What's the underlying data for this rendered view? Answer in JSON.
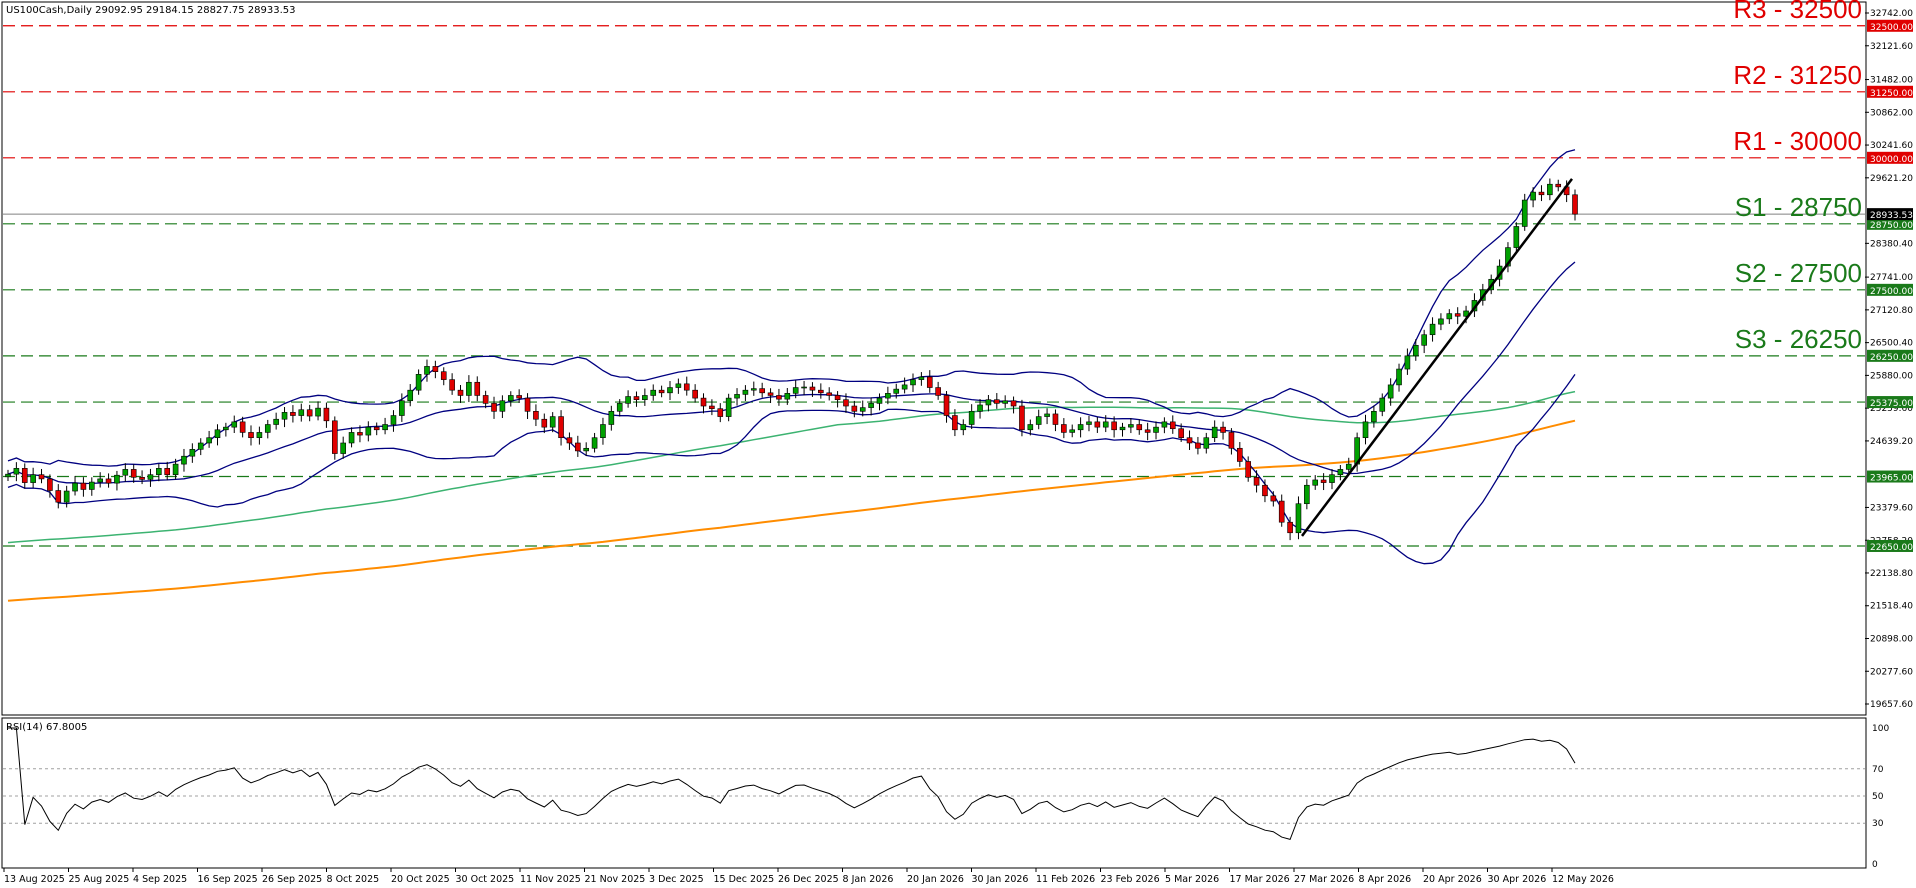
{
  "chart_data": {
    "type": "candlestick",
    "title": "US100Cash,Daily",
    "ohlc_header": "29092.95 29184.15 28827.75 28933.53",
    "current_price": 28933.53,
    "current_price_label": "28933.53",
    "ylim": [
      19657.7,
      32742
    ],
    "y_ticks": [
      "32742.00",
      "32121.60",
      "31482.00",
      "30862.00",
      "30241.60",
      "29621.20",
      "28380.40",
      "27741.00",
      "27120.80",
      "26500.40",
      "25880.00",
      "25259.60",
      "24639.20",
      "23379.60",
      "22758.20",
      "22138.80",
      "21518.40",
      "20898.00",
      "20277.60",
      "19657.60"
    ],
    "x_labels": [
      "13 Aug 2025",
      "25 Aug 2025",
      "4 Sep 2025",
      "16 Sep 2025",
      "26 Sep 2025",
      "8 Oct 2025",
      "20 Oct 2025",
      "30 Oct 2025",
      "11 Nov 2025",
      "21 Nov 2025",
      "3 Dec 2025",
      "15 Dec 2025",
      "26 Dec 2025",
      "8 Jan 2026",
      "20 Jan 2026",
      "30 Jan 2026",
      "11 Feb 2026",
      "23 Feb 2026",
      "5 Mar 2026",
      "17 Mar 2026",
      "27 Mar 2026",
      "8 Apr 2026",
      "20 Apr 2026",
      "30 Apr 2026",
      "12 May 2026"
    ],
    "levels": [
      {
        "value": 32500,
        "label": "R3 - 32500",
        "tag": "32500.00",
        "color": "#e00000"
      },
      {
        "value": 31250,
        "label": "R2 - 31250",
        "tag": "31250.00",
        "color": "#e00000"
      },
      {
        "value": 30000,
        "label": "R1 - 30000",
        "tag": "30000.00",
        "color": "#e00000"
      },
      {
        "value": 28750,
        "label": "S1 - 28750",
        "tag": "28750.00",
        "color": "#1a7a1a"
      },
      {
        "value": 27500,
        "label": "S2 - 27500",
        "tag": "27500.00",
        "color": "#1a7a1a"
      },
      {
        "value": 26250,
        "label": "S3 - 26250",
        "tag": "26250.00",
        "color": "#1a7a1a"
      },
      {
        "value": 25375,
        "label": "",
        "tag": "25375.00",
        "color": "#1a7a1a"
      },
      {
        "value": 23965,
        "label": "",
        "tag": "23965.00",
        "color": "#1a7a1a"
      },
      {
        "value": 22650,
        "label": "",
        "tag": "22650.00",
        "color": "#1a7a1a"
      }
    ],
    "closes": [
      24010,
      24120,
      23850,
      24000,
      23920,
      23700,
      23480,
      23690,
      23840,
      23720,
      23860,
      23920,
      23840,
      23990,
      24100,
      23950,
      23910,
      24000,
      24120,
      24000,
      24200,
      24350,
      24480,
      24600,
      24700,
      24850,
      24900,
      25000,
      24800,
      24700,
      24800,
      24950,
      25050,
      25180,
      25120,
      25230,
      25110,
      25260,
      25020,
      24400,
      24600,
      24800,
      24750,
      24900,
      24850,
      24950,
      25120,
      25400,
      25600,
      25900,
      26050,
      25950,
      25800,
      25600,
      25500,
      25750,
      25500,
      25350,
      25200,
      25400,
      25500,
      25450,
      25200,
      25050,
      24900,
      25100,
      24700,
      24600,
      24450,
      24500,
      24700,
      24950,
      25200,
      25350,
      25480,
      25420,
      25500,
      25600,
      25550,
      25650,
      25720,
      25600,
      25450,
      25300,
      25250,
      25100,
      25450,
      25520,
      25600,
      25630,
      25550,
      25500,
      25430,
      25540,
      25650,
      25660,
      25600,
      25550,
      25500,
      25420,
      25300,
      25200,
      25270,
      25350,
      25450,
      25540,
      25620,
      25700,
      25800,
      25850,
      25650,
      25500,
      25120,
      24850,
      24950,
      25200,
      25320,
      25420,
      25350,
      25400,
      25300,
      24850,
      24950,
      25100,
      25150,
      24950,
      24800,
      24850,
      24950,
      25000,
      24900,
      25000,
      24850,
      24900,
      24950,
      24850,
      24800,
      24900,
      25000,
      24870,
      24700,
      24600,
      24500,
      24700,
      24900,
      24800,
      24500,
      24250,
      23950,
      23800,
      23600,
      23500,
      23100,
      22900,
      23450,
      23800,
      23900,
      23850,
      24000,
      24100,
      24200,
      24700,
      25000,
      25200,
      25450,
      25700,
      26000,
      26250,
      26450,
      26650,
      26850,
      26950,
      27050,
      27000,
      27100,
      27300,
      27500,
      27700,
      27950,
      28300,
      28700,
      29200,
      29350,
      29300,
      29500,
      29450,
      29300,
      28933.53
    ],
    "rsi_title": "RSI(14) 67.8005",
    "rsi_ticks": [
      "100",
      "70",
      "50",
      "30",
      "0"
    ],
    "rsi_levels": [
      70,
      50,
      30
    ],
    "colors": {
      "bull": "#00a000",
      "bear": "#e00000",
      "bollinger": "#000080",
      "ma_green": "#3cb371",
      "ma_orange": "#ff8c00",
      "trendline": "#000000"
    }
  }
}
